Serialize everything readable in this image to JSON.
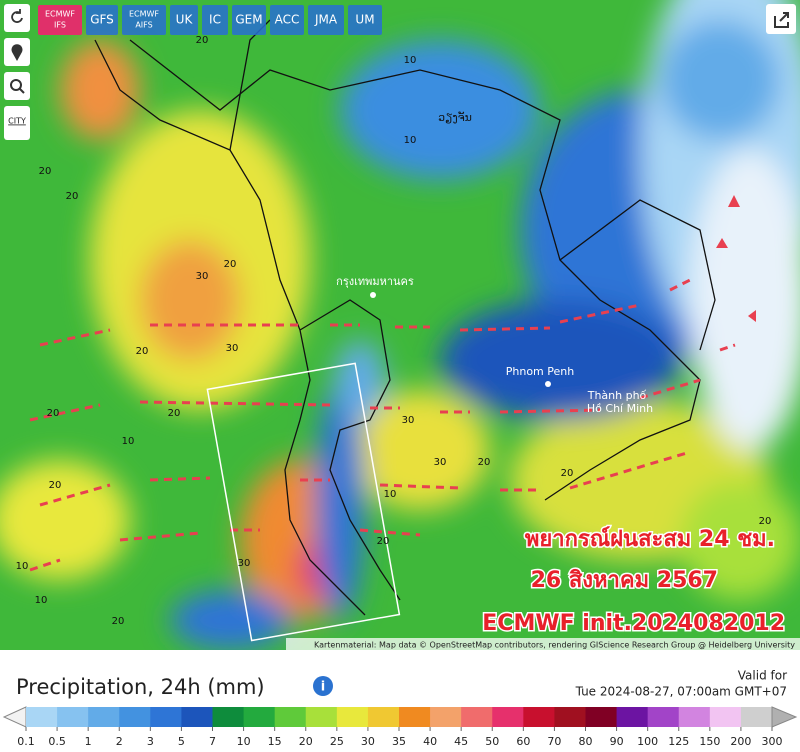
{
  "toolbar": {
    "models": [
      {
        "lines": [
          "ECMWF",
          "IFS"
        ],
        "active": true
      },
      {
        "lines": [
          "GFS"
        ],
        "active": false
      },
      {
        "lines": [
          "ECMWF",
          "AIFS"
        ],
        "active": false
      },
      {
        "lines": [
          "UK"
        ],
        "active": false
      },
      {
        "lines": [
          "IC"
        ],
        "active": false
      },
      {
        "lines": [
          "GEM"
        ],
        "active": false
      },
      {
        "lines": [
          "ACC"
        ],
        "active": false
      },
      {
        "lines": [
          "JMA"
        ],
        "active": false
      },
      {
        "lines": [
          "UM"
        ],
        "active": false
      }
    ],
    "city_button": "CITY"
  },
  "map": {
    "places": [
      "ວຽງຈັນ",
      "กรุงเทพมหานคร",
      "Phnom Penh",
      "Thành phố",
      "Hồ Chí Minh"
    ],
    "contour_labels": [
      "20",
      "20",
      "20",
      "20",
      "30",
      "20",
      "30",
      "10",
      "20",
      "10",
      "20",
      "30",
      "30",
      "10",
      "20",
      "20",
      "10",
      "30",
      "20",
      "20",
      "20",
      "10",
      "10",
      "20"
    ],
    "overlay": [
      "พยากรณ์ฝนสะสม 24 ชม.",
      "26 สิงหาคม 2567",
      "ECMWF init.2024082012"
    ],
    "attribution": "Kartenmaterial: Map data © OpenStreetMap contributors, rendering GIScience Research Group @ Heidelberg University"
  },
  "legend": {
    "title": "Precipitation, 24h (mm)",
    "valid_label": "Valid for",
    "valid_time": "Tue 2024-08-27, 07:00am GMT+07",
    "ticks": [
      0.1,
      0.5,
      1,
      2,
      3,
      5,
      7,
      10,
      15,
      20,
      25,
      30,
      35,
      40,
      45,
      50,
      60,
      70,
      80,
      90,
      100,
      125,
      150,
      200,
      300
    ],
    "colors": [
      "#a9d6f5",
      "#86c2f0",
      "#62abe8",
      "#4392e0",
      "#2e75d6",
      "#1c55bb",
      "#0e8c3c",
      "#23aa3e",
      "#5fca3a",
      "#a8e03a",
      "#e8e83c",
      "#f0c832",
      "#f08a20",
      "#f3a26a",
      "#f06c6c",
      "#e6306c",
      "#c8102e",
      "#a01020",
      "#800024",
      "#6c14a2",
      "#a244c8",
      "#d284e0",
      "#f2c4f2",
      "#cfcfcf"
    ],
    "low_color": "#f2f2f2",
    "high_color": "#b0b0b0"
  }
}
